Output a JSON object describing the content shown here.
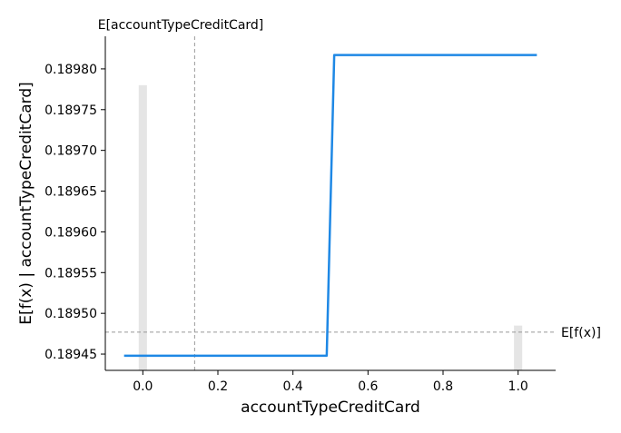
{
  "chart_data": {
    "type": "line",
    "title": "",
    "xlabel": "accountTypeCreditCard",
    "ylabel": "E[f(x) | accountTypeCreditCard]",
    "xlim": [
      -0.1,
      1.1
    ],
    "ylim": [
      0.18943,
      0.18984
    ],
    "xticks": [
      0.0,
      0.2,
      0.4,
      0.6,
      0.8,
      1.0
    ],
    "xtick_labels": [
      "0.0",
      "0.2",
      "0.4",
      "0.6",
      "0.8",
      "1.0"
    ],
    "yticks": [
      0.18945,
      0.1895,
      0.18955,
      0.1896,
      0.18965,
      0.1897,
      0.18975,
      0.1898
    ],
    "ytick_labels": [
      "0.18945",
      "0.18950",
      "0.18955",
      "0.18960",
      "0.18965",
      "0.18970",
      "0.18975",
      "0.18980"
    ],
    "grid": false,
    "series": [
      {
        "color": "#1e88e5",
        "x": [
          -0.05,
          0.49,
          0.51,
          1.05
        ],
        "y": [
          0.189448,
          0.189448,
          0.189817,
          0.189817
        ]
      }
    ],
    "histogram": {
      "color": "#e5e5e5",
      "bin_width": 0.022,
      "bars": [
        {
          "x": 0.0,
          "top": 0.18978
        },
        {
          "x": 1.0,
          "top": 0.189485
        }
      ]
    },
    "reference_lines": {
      "expected_value": {
        "y": 0.189477,
        "label": "E[f(x)]",
        "color": "#999999"
      },
      "feature_mean": {
        "x": 0.138,
        "label": "E[accountTypeCreditCard]",
        "color": "#999999"
      }
    }
  }
}
